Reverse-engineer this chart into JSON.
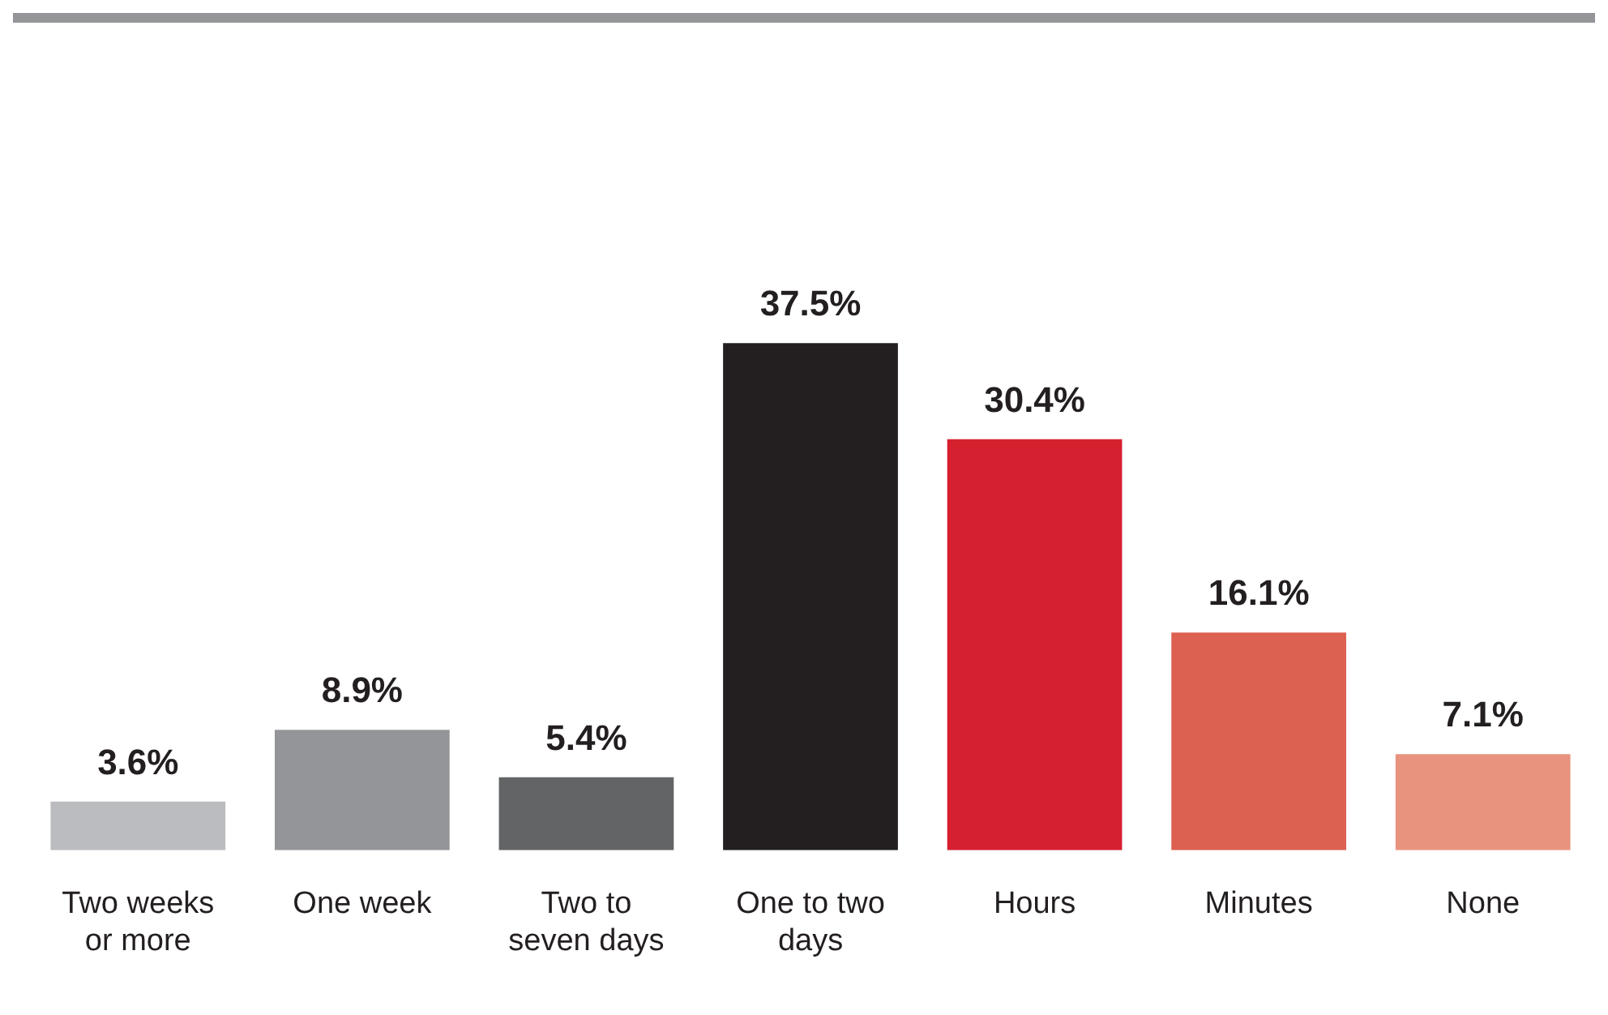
{
  "chart_data": {
    "type": "bar",
    "categories": [
      "Two weeks or more",
      "One week",
      "Two to seven days",
      "One to two days",
      "Hours",
      "Minutes",
      "None"
    ],
    "values": [
      3.6,
      8.9,
      5.4,
      37.5,
      30.4,
      16.1,
      7.1
    ],
    "colors": [
      "#bbbcc0",
      "#939598",
      "#636466",
      "#231f20",
      "#d52030",
      "#dc6150",
      "#e8937e"
    ],
    "value_labels": [
      "3.6%",
      "8.9%",
      "5.4%",
      "37.5%",
      "30.4%",
      "16.1%",
      "7.1%"
    ],
    "relative": false,
    "legend": false,
    "grid": false
  }
}
